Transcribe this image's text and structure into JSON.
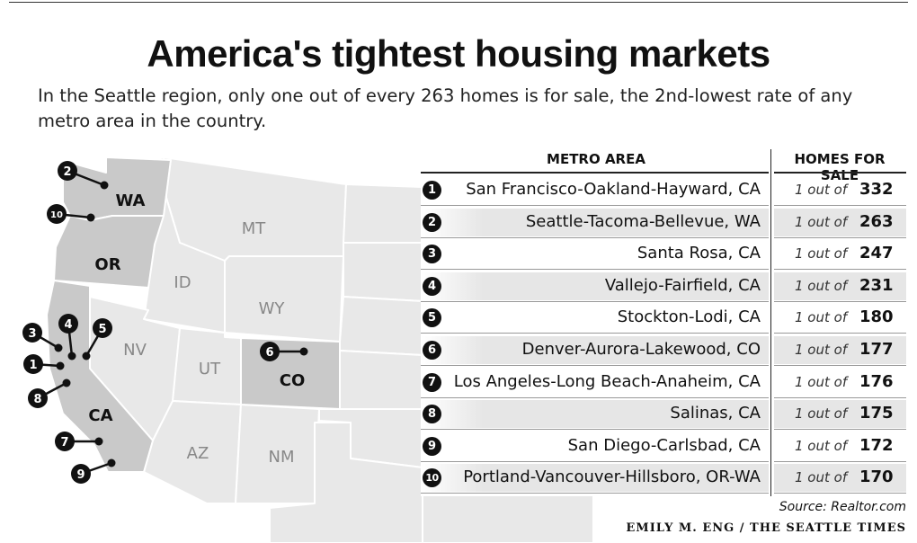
{
  "title": "America's tightest housing markets",
  "subtitle": "In the Seattle region, only one out of every 263 homes is for sale, the 2nd-lowest rate of any metro area in the country.",
  "map": {
    "state_labels": {
      "wa": "WA",
      "or": "OR",
      "ca": "CA",
      "co": "CO",
      "mt": "MT",
      "id": "ID",
      "wy": "WY",
      "nv": "NV",
      "ut": "UT",
      "az": "AZ",
      "nm": "NM"
    },
    "markers": [
      "1",
      "2",
      "3",
      "4",
      "5",
      "6",
      "7",
      "8",
      "9",
      "10"
    ],
    "colors": {
      "highlight_state": "#c9c9c9",
      "other_state": "#e8e8e8",
      "border": "#ffffff",
      "marker": "#111111"
    }
  },
  "table": {
    "col_metro": "METRO AREA",
    "col_homes": "HOMES FOR SALE",
    "ratio_prefix": "1 out of",
    "rows": [
      {
        "rank": "1",
        "metro": "San Francisco-Oakland-Hayward, CA",
        "value": "332"
      },
      {
        "rank": "2",
        "metro": "Seattle-Tacoma-Bellevue, WA",
        "value": "263"
      },
      {
        "rank": "3",
        "metro": "Santa Rosa, CA",
        "value": "247"
      },
      {
        "rank": "4",
        "metro": "Vallejo-Fairfield, CA",
        "value": "231"
      },
      {
        "rank": "5",
        "metro": "Stockton-Lodi, CA",
        "value": "180"
      },
      {
        "rank": "6",
        "metro": "Denver-Aurora-Lakewood, CO",
        "value": "177"
      },
      {
        "rank": "7",
        "metro": "Los Angeles-Long Beach-Anaheim, CA",
        "value": "176"
      },
      {
        "rank": "8",
        "metro": "Salinas, CA",
        "value": "175"
      },
      {
        "rank": "9",
        "metro": "San Diego-Carlsbad, CA",
        "value": "172"
      },
      {
        "rank": "10",
        "metro": "Portland-Vancouver-Hillsboro, OR-WA",
        "value": "170"
      }
    ]
  },
  "source": "Source: Realtor.com",
  "credit": "EMILY M. ENG / THE SEATTLE TIMES"
}
